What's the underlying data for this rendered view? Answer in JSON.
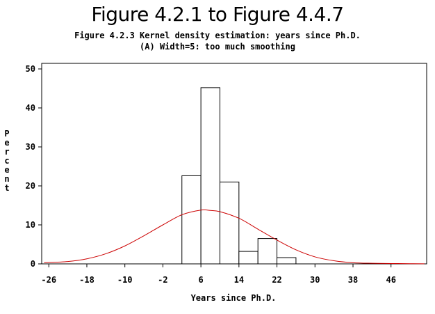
{
  "title": "Figure 4.2.1 to Figure 4.4.7",
  "chart_data": {
    "type": "bar",
    "title": "Figure 4.2.3 Kernel density estimation: years since Ph.D.",
    "subtitle": "(A) Width=5: too much smoothing",
    "xlabel": "Years since Ph.D.",
    "ylabel": "Percent",
    "xticks": [
      -26,
      -18,
      -10,
      -2,
      6,
      14,
      22,
      30,
      38,
      46
    ],
    "yticks": [
      0,
      10,
      20,
      30,
      40,
      50
    ],
    "xlim": [
      -27.5,
      53.5
    ],
    "ylim": [
      0,
      50
    ],
    "bins": [
      {
        "from": 2,
        "to": 6,
        "value": 22.6
      },
      {
        "from": 6,
        "to": 10,
        "value": 45.2
      },
      {
        "from": 10,
        "to": 14,
        "value": 21.0
      },
      {
        "from": 14,
        "to": 18,
        "value": 3.2
      },
      {
        "from": 18,
        "to": 22,
        "value": 6.5
      },
      {
        "from": 22,
        "to": 26,
        "value": 1.6
      }
    ],
    "density_curve": {
      "color": "#cc0000",
      "x": [
        -27,
        -22,
        -18,
        -14,
        -10,
        -6,
        -2,
        2,
        6,
        8,
        10,
        14,
        18,
        22,
        26,
        30,
        34,
        38,
        42,
        46,
        50,
        53
      ],
      "y": [
        0.3,
        0.6,
        1.3,
        2.6,
        4.6,
        7.2,
        10.0,
        12.6,
        13.8,
        13.7,
        13.4,
        11.7,
        8.9,
        6.1,
        3.6,
        1.8,
        0.8,
        0.3,
        0.15,
        0.1,
        0.05,
        0.02
      ]
    },
    "grid": false,
    "legend": "none"
  }
}
